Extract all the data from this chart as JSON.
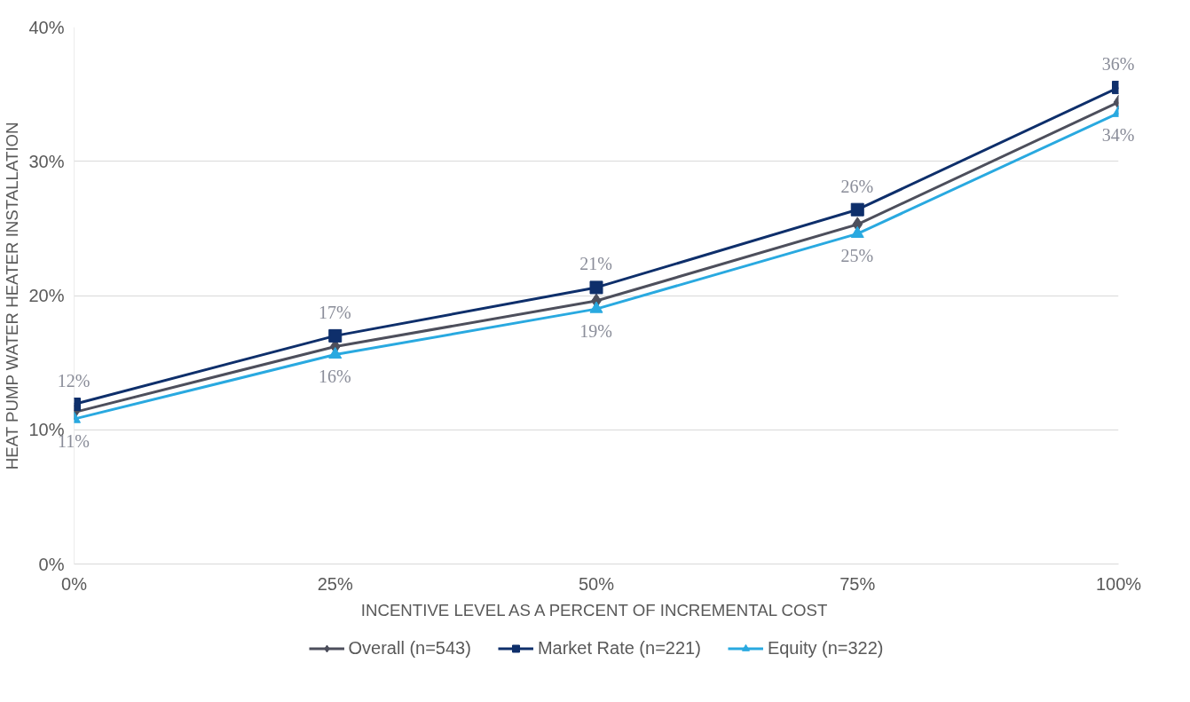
{
  "chart_data": {
    "type": "line",
    "xlabel": "INCENTIVE LEVEL AS A PERCENT OF INCREMENTAL COST",
    "ylabel": "HEAT PUMP WATER HEATER INSTALLATION",
    "x": [
      0,
      25,
      50,
      75,
      100
    ],
    "xlim": [
      0,
      100
    ],
    "xticks": [
      {
        "value": 0,
        "label": "0%"
      },
      {
        "value": 25,
        "label": "25%"
      },
      {
        "value": 50,
        "label": "50%"
      },
      {
        "value": 75,
        "label": "75%"
      },
      {
        "value": 100,
        "label": "100%"
      }
    ],
    "ylim": [
      0,
      40
    ],
    "yticks": [
      {
        "value": 0,
        "label": "0%"
      },
      {
        "value": 10,
        "label": "10%"
      },
      {
        "value": 20,
        "label": "20%"
      },
      {
        "value": 30,
        "label": "30%"
      },
      {
        "value": 40,
        "label": "40%"
      }
    ],
    "grid": "y",
    "legend": "bottom",
    "line_style": "solid",
    "series": [
      {
        "name": "Overall (n=543)",
        "color": "#4d4f5c",
        "marker": "diamond",
        "values": [
          11.3,
          16.2,
          19.6,
          25.3,
          34.4
        ]
      },
      {
        "name": "Market Rate (n=221)",
        "color": "#0e2f6b",
        "marker": "square",
        "values": [
          11.9,
          17.0,
          20.6,
          26.4,
          35.5
        ],
        "value_labels": [
          "12%",
          "17%",
          "21%",
          "26%",
          "36%"
        ]
      },
      {
        "name": "Equity (n=322)",
        "color": "#29a9e0",
        "marker": "triangle",
        "values": [
          10.8,
          15.6,
          19.0,
          24.6,
          33.6
        ],
        "value_labels": [
          "11%",
          "16%",
          "19%",
          "25%",
          "34%"
        ]
      }
    ]
  }
}
